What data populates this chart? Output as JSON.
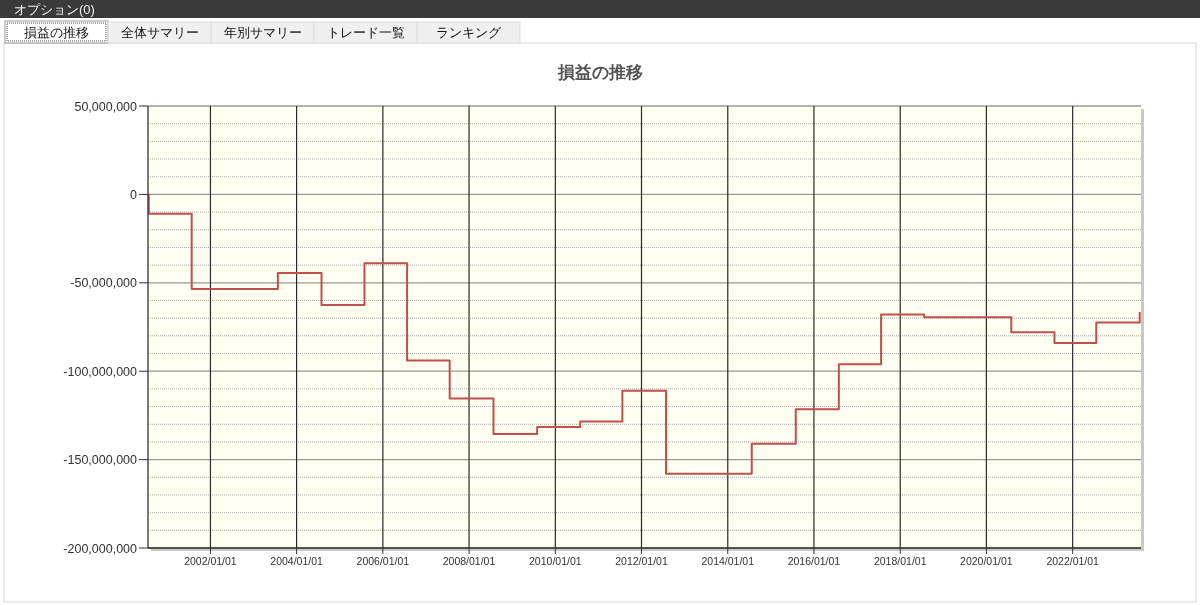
{
  "chart_data": {
    "type": "step",
    "title": "損益の推移",
    "annotations": [
      "オプション(0)",
      "損益の推移",
      "全体サマリー",
      "年別サマリー",
      "トレード一覧",
      "ランキング"
    ],
    "x": [
      "2000-07-21",
      "2000-07-27",
      "2001-07-26",
      "2003-07-26",
      "2004-07-30",
      "2005-07-29",
      "2006-07-25",
      "2007-07-21",
      "2008-07-26",
      "2009-07-31",
      "2010-07-31",
      "2011-07-23",
      "2012-07-27",
      "2014-07-23",
      "2015-07-31",
      "2016-07-30",
      "2017-07-23",
      "2018-07-23",
      "2020-07-30",
      "2021-07-31",
      "2022-07-20",
      "2023-07-23"
    ],
    "series": [
      {
        "color": "#c0504d",
        "values": [
          0,
          -11000000,
          -53500000,
          -44500000,
          -62500000,
          -39000000,
          -94000000,
          -115500000,
          -135500000,
          -131500000,
          -128500000,
          -111000000,
          -158000000,
          -141000000,
          -121500000,
          -96000000,
          -68000000,
          -69500000,
          -78000000,
          -84000000,
          -72500000,
          -66500000
        ]
      }
    ],
    "xlim": [
      "2000-07-21",
      "2023-08-03"
    ],
    "xticks": [
      {
        "value": "2002-01-01",
        "label": "2002/01/01"
      },
      {
        "value": "2004-01-01",
        "label": "2004/01/01"
      },
      {
        "value": "2006-01-01",
        "label": "2006/01/01"
      },
      {
        "value": "2008-01-01",
        "label": "2008/01/01"
      },
      {
        "value": "2010-01-01",
        "label": "2010/01/01"
      },
      {
        "value": "2012-01-01",
        "label": "2012/01/01"
      },
      {
        "value": "2014-01-01",
        "label": "2014/01/01"
      },
      {
        "value": "2016-01-01",
        "label": "2016/01/01"
      },
      {
        "value": "2018-01-01",
        "label": "2018/01/01"
      },
      {
        "value": "2020-01-01",
        "label": "2020/01/01"
      },
      {
        "value": "2022-01-01",
        "label": "2022/01/01"
      }
    ],
    "ylim": [
      -200000000,
      50000000
    ],
    "yticks": [
      {
        "value": 50000000,
        "label": "50,000,000"
      },
      {
        "value": 40000000,
        "label": null
      },
      {
        "value": 30000000,
        "label": null
      },
      {
        "value": 20000000,
        "label": null
      },
      {
        "value": 10000000,
        "label": null
      },
      0,
      {
        "value": -10000000,
        "label": null
      },
      {
        "value": -20000000,
        "label": null
      },
      {
        "value": -30000000,
        "label": null
      },
      {
        "value": -40000000,
        "label": null
      },
      {
        "value": -50000000,
        "label": "-50,000,000"
      },
      {
        "value": -60000000,
        "label": null
      },
      {
        "value": -70000000,
        "label": null
      },
      {
        "value": -80000000,
        "label": null
      },
      {
        "value": -90000000,
        "label": null
      },
      {
        "value": -100000000,
        "label": "-100,000,000"
      },
      {
        "value": -110000000,
        "label": null
      },
      {
        "value": -120000000,
        "label": null
      },
      {
        "value": -130000000,
        "label": null
      },
      {
        "value": -140000000,
        "label": null
      },
      {
        "value": -150000000,
        "label": "-150,000,000"
      },
      {
        "value": -160000000,
        "label": null
      },
      {
        "value": -170000000,
        "label": null
      },
      {
        "value": -180000000,
        "label": null
      },
      {
        "value": -190000000,
        "label": null
      },
      {
        "value": -200000000,
        "label": "-200,000,000"
      }
    ],
    "grid": true
  }
}
